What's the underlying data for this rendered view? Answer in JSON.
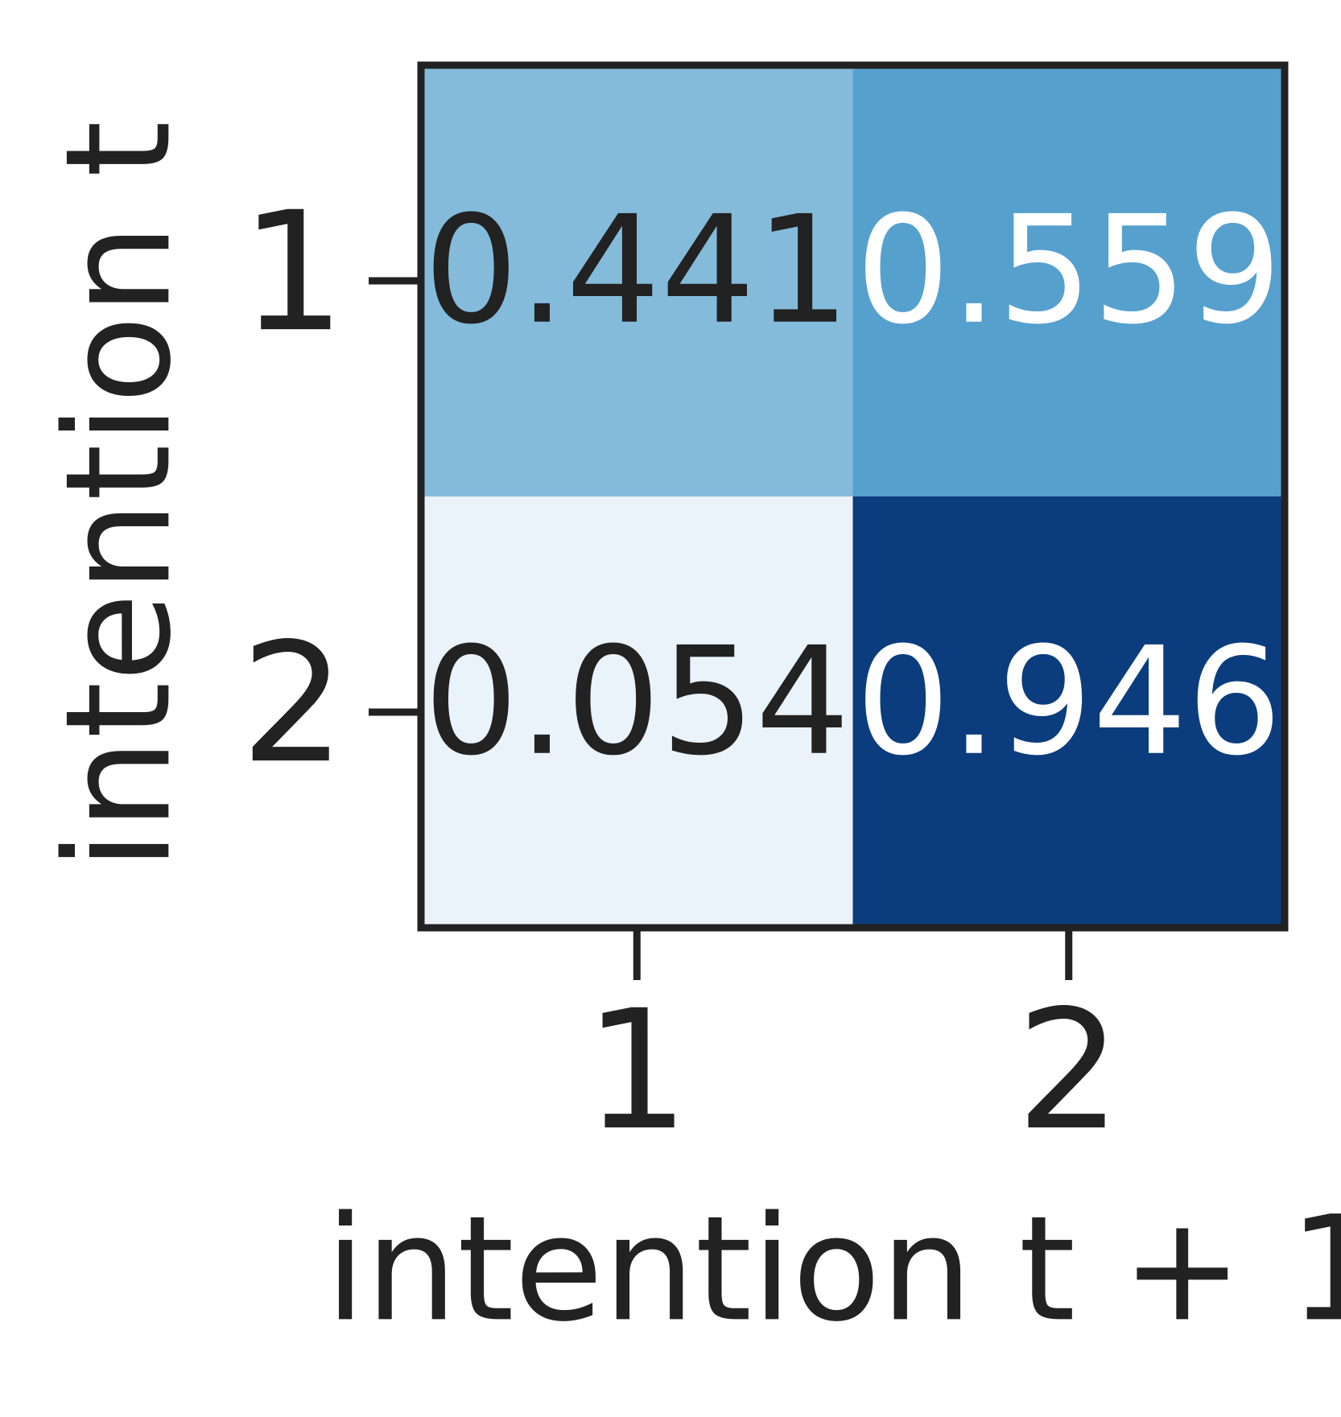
{
  "chart_data": {
    "type": "heatmap",
    "xlabel": "intention t + 1",
    "ylabel": "intention t",
    "x_categories": [
      "1",
      "2"
    ],
    "y_categories": [
      "1",
      "2"
    ],
    "values": [
      [
        0.441,
        0.559
      ],
      [
        0.054,
        0.946
      ]
    ],
    "colors": [
      [
        "#84bbdb",
        "#56a0ce"
      ],
      [
        "#eaf2fa",
        "#0b3d7e"
      ]
    ]
  }
}
